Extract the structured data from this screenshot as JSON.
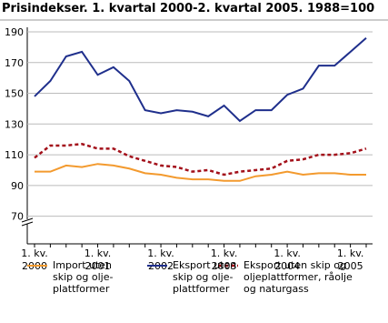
{
  "chart_data": {
    "type": "line",
    "title": "Prisindekser. 1. kvartal 2000-2. kvartal 2005. 1988=100",
    "categories": [
      "1. kv.\n2000",
      null,
      null,
      null,
      "1. kv.\n2001",
      null,
      null,
      null,
      "1. kv.\n2002",
      null,
      null,
      null,
      "1. kv.\n2003",
      null,
      null,
      null,
      "1. kv.\n2004",
      null,
      null,
      null,
      "1. kv.\n2005",
      null
    ],
    "series": [
      {
        "name": "Import uten\nskip og olje-\nplattformer",
        "color": "#f39a2e",
        "dash": false,
        "values": [
          99,
          99,
          103,
          102,
          104,
          103,
          101,
          98,
          97,
          95,
          94,
          94,
          93,
          93,
          96,
          97,
          99,
          97,
          98,
          98,
          97,
          97
        ]
      },
      {
        "name": "Eksport uten\nskip og olje-\nplattformer",
        "color": "#1f2f8c",
        "dash": false,
        "values": [
          148,
          158,
          174,
          177,
          162,
          167,
          158,
          139,
          137,
          139,
          138,
          135,
          142,
          132,
          139,
          139,
          149,
          153,
          168,
          168,
          177,
          186
        ]
      },
      {
        "name": "Eksport uten skip og\noljeplattformer, råolje\nog naturgass",
        "color": "#a3101a",
        "dash": true,
        "values": [
          108,
          116,
          116,
          117,
          114,
          114,
          109,
          106,
          103,
          102,
          99,
          100,
          97,
          99,
          100,
          101,
          106,
          107,
          110,
          110,
          111,
          114
        ]
      }
    ],
    "ylim": [
      52,
      190
    ],
    "yticks": [
      70,
      90,
      110,
      130,
      150,
      170,
      190
    ],
    "grid": true
  }
}
